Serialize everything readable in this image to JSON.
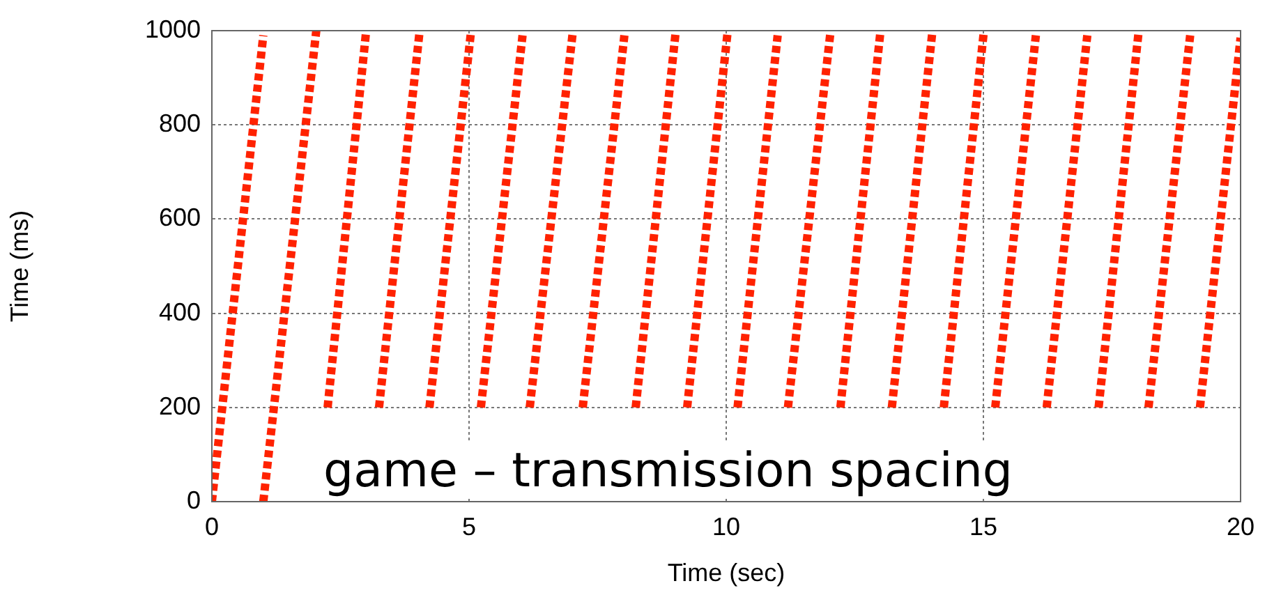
{
  "chart_data": {
    "type": "line",
    "xlabel": "Time (sec)",
    "ylabel": "Time (ms)",
    "annotations": [
      "game – transmission spacing"
    ],
    "xlim": [
      0,
      20
    ],
    "xticks": [
      0,
      5,
      10,
      15,
      20
    ],
    "ylim": [
      0,
      1000
    ],
    "yticks": [
      0,
      200,
      400,
      600,
      800,
      1000
    ],
    "grid": true,
    "legend": false,
    "marker": "none",
    "line_style": "dotted",
    "series": [
      {
        "color": "#ff2200",
        "x": [
          0,
          1.0
        ],
        "values": [
          0,
          990
        ]
      },
      {
        "color": "#ff2200",
        "x": [
          1.0,
          2.03
        ],
        "values": [
          0,
          1000
        ]
      },
      {
        "color": "#ff2200",
        "x": [
          2.25,
          3.0
        ],
        "values": [
          200,
          1000
        ]
      },
      {
        "color": "#ff2200",
        "x": [
          3.25,
          4.04
        ],
        "values": [
          200,
          1000
        ]
      },
      {
        "color": "#ff2200",
        "x": [
          4.23,
          5.04
        ],
        "values": [
          200,
          1000
        ]
      },
      {
        "color": "#ff2200",
        "x": [
          5.23,
          6.04
        ],
        "values": [
          200,
          990
        ]
      },
      {
        "color": "#ff2200",
        "x": [
          6.18,
          7.02
        ],
        "values": [
          200,
          1000
        ]
      },
      {
        "color": "#ff2200",
        "x": [
          7.21,
          8.02
        ],
        "values": [
          200,
          990
        ]
      },
      {
        "color": "#ff2200",
        "x": [
          8.24,
          9.02
        ],
        "values": [
          200,
          1000
        ]
      },
      {
        "color": "#ff2200",
        "x": [
          9.24,
          10.03
        ],
        "values": [
          200,
          1000
        ]
      },
      {
        "color": "#ff2200",
        "x": [
          10.22,
          11.0
        ],
        "values": [
          200,
          990
        ]
      },
      {
        "color": "#ff2200",
        "x": [
          11.2,
          12.03
        ],
        "values": [
          200,
          1000
        ]
      },
      {
        "color": "#ff2200",
        "x": [
          12.22,
          13.0
        ],
        "values": [
          200,
          1000
        ]
      },
      {
        "color": "#ff2200",
        "x": [
          13.22,
          14.01
        ],
        "values": [
          200,
          1000
        ]
      },
      {
        "color": "#ff2200",
        "x": [
          14.23,
          15.01
        ],
        "values": [
          200,
          1000
        ]
      },
      {
        "color": "#ff2200",
        "x": [
          15.23,
          16.02
        ],
        "values": [
          200,
          990
        ]
      },
      {
        "color": "#ff2200",
        "x": [
          16.23,
          17.02
        ],
        "values": [
          200,
          990
        ]
      },
      {
        "color": "#ff2200",
        "x": [
          17.24,
          18.02
        ],
        "values": [
          200,
          1000
        ]
      },
      {
        "color": "#ff2200",
        "x": [
          18.21,
          19.02
        ],
        "values": [
          200,
          990
        ]
      },
      {
        "color": "#ff2200",
        "x": [
          19.21,
          20.0
        ],
        "values": [
          200,
          985
        ]
      }
    ]
  }
}
